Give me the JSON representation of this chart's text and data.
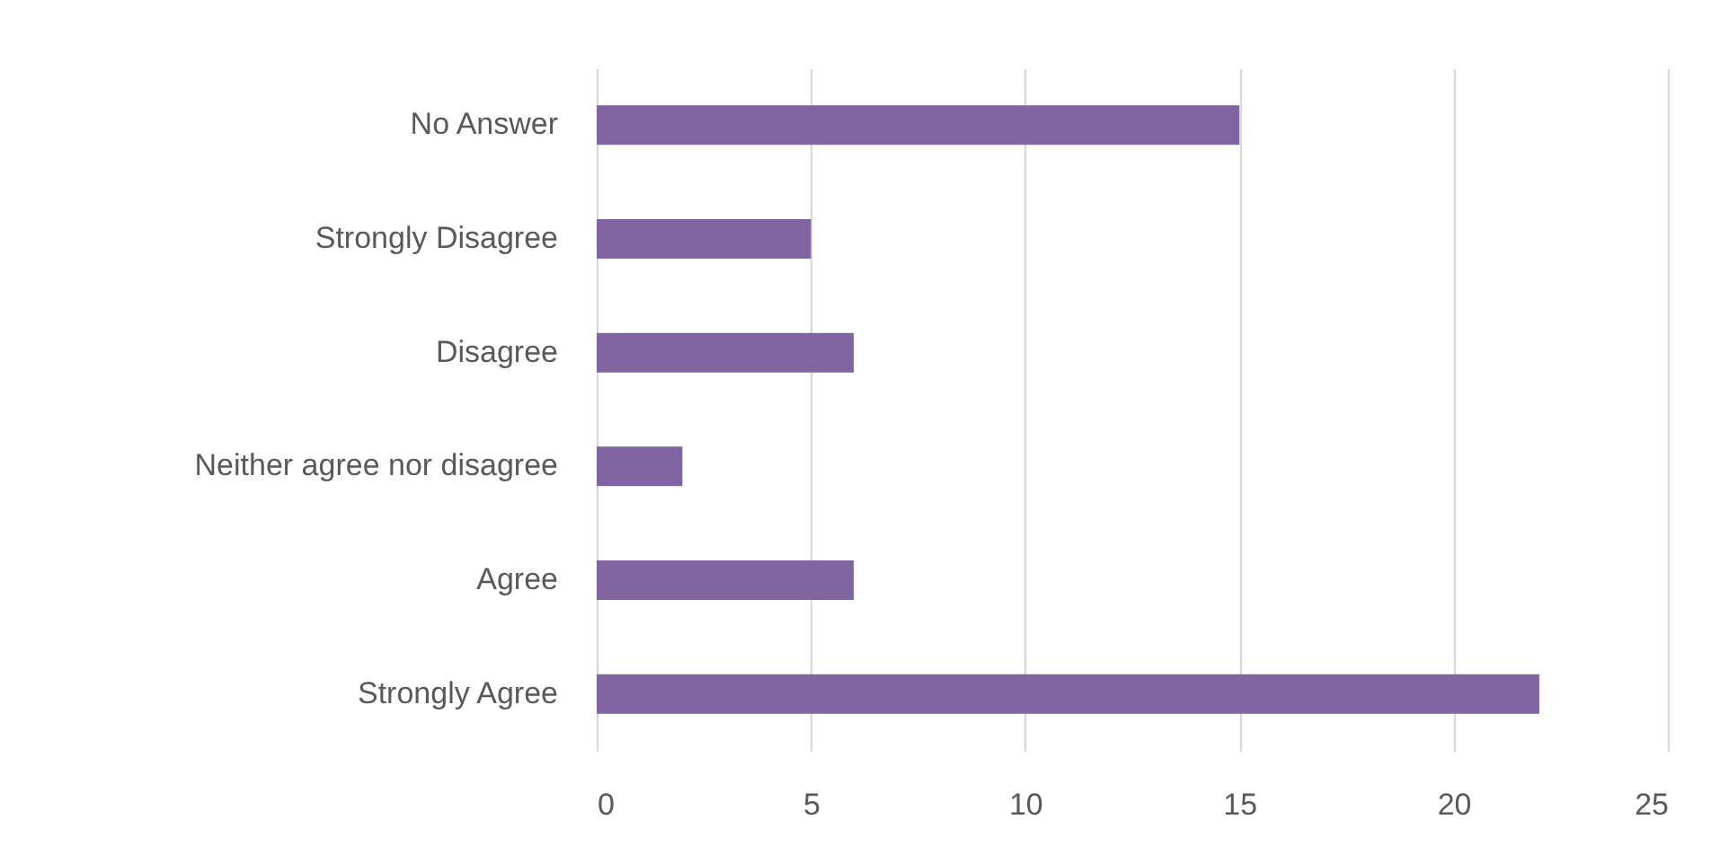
{
  "chart_data": {
    "type": "bar",
    "orientation": "horizontal",
    "categories": [
      "No Answer",
      "Strongly Disagree",
      "Disagree",
      "Neither agree nor disagree",
      "Agree",
      "Strongly Agree"
    ],
    "values": [
      15,
      5,
      6,
      2,
      6,
      22
    ],
    "color": "#8064a2",
    "xlim": [
      0,
      25
    ],
    "xticks": [
      0,
      5,
      10,
      15,
      20,
      25
    ],
    "grid": "x"
  }
}
